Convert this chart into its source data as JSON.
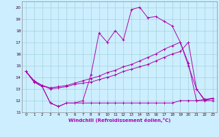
{
  "xlabel": "Windchill (Refroidissement éolien,°C)",
  "bg_color": "#cceeff",
  "line_color": "#aa00aa",
  "grid_color": "#99cccc",
  "xlim": [
    -0.5,
    23.5
  ],
  "ylim": [
    11,
    20.5
  ],
  "yticks": [
    11,
    12,
    13,
    14,
    15,
    16,
    17,
    18,
    19,
    20
  ],
  "xticks": [
    0,
    1,
    2,
    3,
    4,
    5,
    6,
    7,
    8,
    9,
    10,
    11,
    12,
    13,
    14,
    15,
    16,
    17,
    18,
    19,
    20,
    21,
    22,
    23
  ],
  "s1_x": [
    0,
    1,
    2,
    3,
    4,
    5,
    6,
    7,
    8,
    9,
    10,
    11,
    12,
    13,
    14,
    15,
    16,
    17,
    18,
    19,
    20,
    21,
    22,
    23
  ],
  "s1_y": [
    14.5,
    13.6,
    13.2,
    11.8,
    11.5,
    11.8,
    11.8,
    11.8,
    11.8,
    11.8,
    11.8,
    11.8,
    11.8,
    11.8,
    11.8,
    11.8,
    11.8,
    11.8,
    11.8,
    12.0,
    12.0,
    12.0,
    12.0,
    12.0
  ],
  "s2_x": [
    0,
    1,
    2,
    3,
    4,
    5,
    6,
    7,
    8,
    9,
    10,
    11,
    12,
    13,
    14,
    15,
    16,
    17,
    18,
    19,
    20,
    21,
    22,
    23
  ],
  "s2_y": [
    14.5,
    13.6,
    13.2,
    11.8,
    11.5,
    11.8,
    11.8,
    12.0,
    14.2,
    17.8,
    17.0,
    18.0,
    17.2,
    19.8,
    20.0,
    19.1,
    19.2,
    18.8,
    18.4,
    17.0,
    15.0,
    13.0,
    12.0,
    12.2
  ],
  "s3_x": [
    0,
    1,
    2,
    3,
    4,
    5,
    6,
    7,
    8,
    9,
    10,
    11,
    12,
    13,
    14,
    15,
    16,
    17,
    18,
    19,
    20,
    21,
    22,
    23
  ],
  "s3_y": [
    14.5,
    13.7,
    13.3,
    13.0,
    13.1,
    13.2,
    13.4,
    13.5,
    13.6,
    13.8,
    14.0,
    14.2,
    14.5,
    14.7,
    14.9,
    15.1,
    15.4,
    15.7,
    16.0,
    16.2,
    17.0,
    13.0,
    12.1,
    12.2
  ],
  "s4_x": [
    0,
    1,
    2,
    3,
    4,
    5,
    6,
    7,
    8,
    9,
    10,
    11,
    12,
    13,
    14,
    15,
    16,
    17,
    18,
    19,
    20,
    21,
    22,
    23
  ],
  "s4_y": [
    14.5,
    13.7,
    13.3,
    13.1,
    13.2,
    13.3,
    13.5,
    13.7,
    13.9,
    14.1,
    14.4,
    14.6,
    14.9,
    15.1,
    15.4,
    15.7,
    16.0,
    16.4,
    16.7,
    17.0,
    15.2,
    12.0,
    12.1,
    12.2
  ]
}
